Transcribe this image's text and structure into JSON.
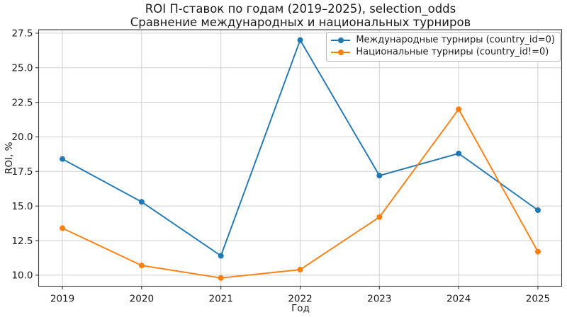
{
  "figure": {
    "title_line1": "ROI П-ставок по годам (2019–2025), selection_odds",
    "title_line2": "Сравнение международных и национальных турниров"
  },
  "chart_data": {
    "type": "line",
    "title": "ROI П-ставок по годам (2019–2025), selection_odds\nСравнение международных и национальных турниров",
    "xlabel": "Год",
    "ylabel": "ROI, %",
    "x": [
      2019,
      2020,
      2021,
      2022,
      2023,
      2024,
      2025
    ],
    "xtick_labels": [
      "2019",
      "2020",
      "2021",
      "2022",
      "2023",
      "2024",
      "2025"
    ],
    "yticks": [
      10.0,
      12.5,
      15.0,
      17.5,
      20.0,
      22.5,
      25.0,
      27.5
    ],
    "ytick_labels": [
      "10.0",
      "12.5",
      "15.0",
      "17.5",
      "20.0",
      "22.5",
      "25.0",
      "27.5"
    ],
    "xlim": [
      2018.7,
      2025.3
    ],
    "ylim": [
      9.2,
      27.75
    ],
    "grid": true,
    "legend_position": "upper right",
    "marker": "o",
    "series": [
      {
        "name": "Международные турниры (country_id=0)",
        "color": "#1f77b4",
        "values": [
          18.4,
          15.3,
          11.4,
          27.0,
          17.2,
          18.8,
          14.7
        ]
      },
      {
        "name": "Национальные турниры (country_id!=0)",
        "color": "#ff7f0e",
        "values": [
          13.4,
          10.7,
          9.8,
          10.4,
          14.2,
          22.0,
          11.7
        ]
      }
    ]
  },
  "colors": {
    "series_international": "#1f77b4",
    "series_national": "#ff7f0e",
    "grid": "#cfcfcf",
    "spine": "#3a3a3a",
    "text": "#1c1c1c",
    "background": "#ffffff"
  }
}
